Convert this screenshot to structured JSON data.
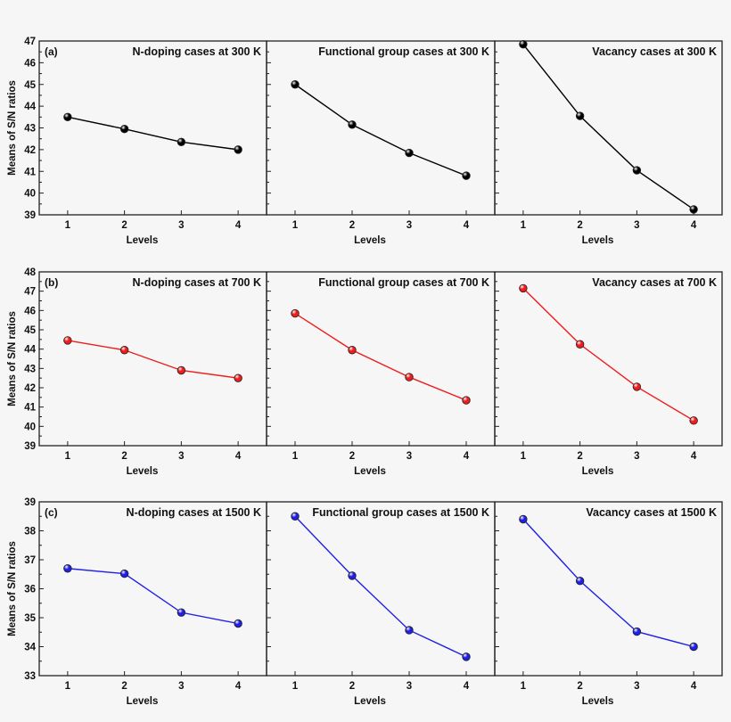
{
  "chart_data": {
    "type": "line",
    "rows": [
      {
        "label": "(a)",
        "ylabel": "Means of S/N ratios",
        "ylim": [
          39,
          47
        ],
        "yticks": [
          39,
          40,
          41,
          42,
          43,
          44,
          45,
          46,
          47
        ],
        "color": "#000000",
        "panels": [
          {
            "title": "N-doping cases at 300 K",
            "xlabel": "Levels",
            "x": [
              1,
              2,
              3,
              4
            ],
            "values": [
              43.5,
              42.95,
              42.35,
              42.0
            ]
          },
          {
            "title": "Functional group cases at 300 K",
            "xlabel": "Levels",
            "x": [
              1,
              2,
              3,
              4
            ],
            "values": [
              45.0,
              43.15,
              41.85,
              40.8
            ]
          },
          {
            "title": "Vacancy cases at 300 K",
            "xlabel": "Levels",
            "x": [
              1,
              2,
              3,
              4
            ],
            "values": [
              46.85,
              43.55,
              41.05,
              39.25
            ]
          }
        ]
      },
      {
        "label": "(b)",
        "ylabel": "Means of S/N ratios",
        "ylim": [
          39,
          48
        ],
        "yticks": [
          39,
          40,
          41,
          42,
          43,
          44,
          45,
          46,
          47,
          48
        ],
        "color": "#ee1c1c",
        "panels": [
          {
            "title": "N-doping cases at 700 K",
            "xlabel": "Levels",
            "x": [
              1,
              2,
              3,
              4
            ],
            "values": [
              44.45,
              43.95,
              42.9,
              42.5
            ]
          },
          {
            "title": "Functional group cases at 700 K",
            "xlabel": "Levels",
            "x": [
              1,
              2,
              3,
              4
            ],
            "values": [
              45.85,
              43.95,
              42.55,
              41.35
            ]
          },
          {
            "title": "Vacancy cases at 700 K",
            "xlabel": "Levels",
            "x": [
              1,
              2,
              3,
              4
            ],
            "values": [
              47.15,
              44.25,
              42.05,
              40.3
            ]
          }
        ]
      },
      {
        "label": "(c)",
        "ylabel": "Means of S/N ratios",
        "ylim": [
          33,
          39
        ],
        "yticks": [
          33,
          34,
          35,
          36,
          37,
          38,
          39
        ],
        "color": "#1f1fe6",
        "panels": [
          {
            "title": "N-doping cases at 1500 K",
            "xlabel": "Levels",
            "x": [
              1,
              2,
              3,
              4
            ],
            "values": [
              36.7,
              36.52,
              35.18,
              34.8
            ]
          },
          {
            "title": "Functional group cases at 1500 K",
            "xlabel": "Levels",
            "x": [
              1,
              2,
              3,
              4
            ],
            "values": [
              38.5,
              36.45,
              34.57,
              33.65
            ]
          },
          {
            "title": "Vacancy cases at 1500 K",
            "xlabel": "Levels",
            "x": [
              1,
              2,
              3,
              4
            ],
            "values": [
              38.4,
              36.27,
              34.52,
              34.0
            ]
          }
        ]
      }
    ],
    "xlim": [
      0.5,
      4.5
    ],
    "xticks": [
      1,
      2,
      3,
      4
    ],
    "grid": false,
    "legend": "none"
  }
}
